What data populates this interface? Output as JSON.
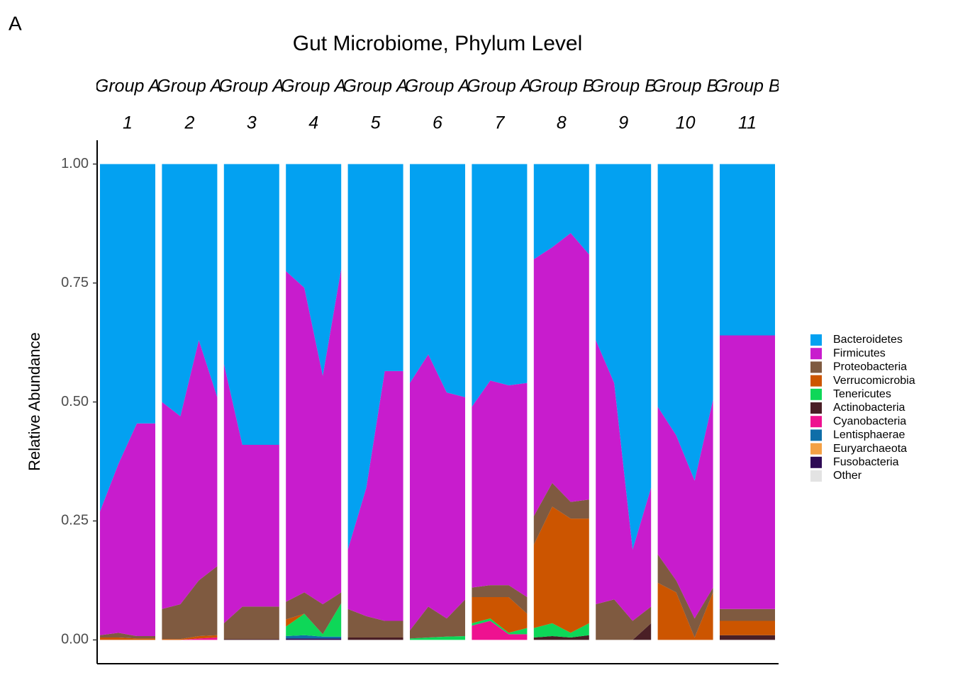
{
  "chart_data": {
    "type": "area",
    "panel_label": "A",
    "title": "Gut Microbiome, Phylum Level",
    "y_label": "Relative Abundance",
    "ylim": [
      -0.05,
      1.05
    ],
    "yticks": [
      {
        "value": 0,
        "label": "0.00"
      },
      {
        "value": 0.25,
        "label": "0.25"
      },
      {
        "value": 0.5,
        "label": "0.50"
      },
      {
        "value": 0.75,
        "label": "0.75"
      },
      {
        "value": 1,
        "label": "1.00"
      }
    ],
    "series": [
      {
        "name": "Bacteroidetes",
        "color": "#03a1f1"
      },
      {
        "name": "Firmicutes",
        "color": "#c81ccd"
      },
      {
        "name": "Proteobacteria",
        "color": "#7f5a40"
      },
      {
        "name": "Verrucomicrobia",
        "color": "#cc5500"
      },
      {
        "name": "Tenericutes",
        "color": "#0ed758"
      },
      {
        "name": "Actinobacteria",
        "color": "#4a1f26"
      },
      {
        "name": "Cyanobacteria",
        "color": "#ee1190"
      },
      {
        "name": "Lentisphaerae",
        "color": "#0f6ea8"
      },
      {
        "name": "Euryarchaeota",
        "color": "#f4a044"
      },
      {
        "name": "Fusobacteria",
        "color": "#2e0a55"
      },
      {
        "name": "Other",
        "color": "#e3e3e3"
      }
    ],
    "facets": [
      {
        "group": "Group A",
        "label": "1",
        "values": [
          [
            0.73,
            0.63,
            0.545,
            0.545
          ],
          [
            0.26,
            0.355,
            0.447,
            0.447
          ],
          [
            0.005,
            0.01,
            0.005,
            0.005
          ],
          [
            0.005,
            0.005,
            0.003,
            0.003
          ],
          [
            0,
            0,
            0,
            0
          ],
          [
            0,
            0,
            0,
            0
          ],
          [
            0,
            0,
            0,
            0
          ],
          [
            0,
            0,
            0,
            0
          ],
          [
            0,
            0,
            0,
            0
          ],
          [
            0,
            0,
            0,
            0
          ],
          [
            0,
            0,
            0,
            0
          ]
        ]
      },
      {
        "group": "Group A",
        "label": "2",
        "values": [
          [
            0.5,
            0.53,
            0.37,
            0.49
          ],
          [
            0.435,
            0.395,
            0.505,
            0.355
          ],
          [
            0.063,
            0.073,
            0.117,
            0.145
          ],
          [
            0.002,
            0.002,
            0.005,
            0.005
          ],
          [
            0,
            0,
            0,
            0
          ],
          [
            0,
            0,
            0,
            0
          ],
          [
            0,
            0,
            0.003,
            0.005
          ],
          [
            0,
            0,
            0,
            0
          ],
          [
            0,
            0,
            0,
            0
          ],
          [
            0,
            0,
            0,
            0
          ],
          [
            0,
            0,
            0,
            0
          ]
        ]
      },
      {
        "group": "Group A",
        "label": "3",
        "values": [
          [
            0.42,
            0.59,
            0.59,
            0.59
          ],
          [
            0.545,
            0.34,
            0.34,
            0.34
          ],
          [
            0.033,
            0.068,
            0.068,
            0.068
          ],
          [
            0,
            0,
            0,
            0
          ],
          [
            0,
            0,
            0,
            0
          ],
          [
            0.002,
            0.002,
            0.002,
            0.002
          ],
          [
            0,
            0,
            0,
            0
          ],
          [
            0,
            0,
            0,
            0
          ],
          [
            0,
            0,
            0,
            0
          ],
          [
            0,
            0,
            0,
            0
          ],
          [
            0,
            0,
            0,
            0
          ]
        ]
      },
      {
        "group": "Group A",
        "label": "4",
        "values": [
          [
            0.225,
            0.26,
            0.445,
            0.22
          ],
          [
            0.695,
            0.64,
            0.48,
            0.68
          ],
          [
            0.037,
            0.045,
            0.063,
            0.023
          ],
          [
            0.015,
            0,
            0,
            0
          ],
          [
            0.02,
            0.045,
            0.005,
            0.07
          ],
          [
            0,
            0,
            0,
            0
          ],
          [
            0,
            0,
            0,
            0
          ],
          [
            0.005,
            0.007,
            0.004,
            0.004
          ],
          [
            0,
            0,
            0,
            0
          ],
          [
            0.003,
            0.003,
            0.003,
            0.003
          ],
          [
            0,
            0,
            0,
            0
          ]
        ]
      },
      {
        "group": "Group A",
        "label": "5",
        "values": [
          [
            0.81,
            0.68,
            0.435,
            0.435
          ],
          [
            0.125,
            0.27,
            0.525,
            0.525
          ],
          [
            0.06,
            0.045,
            0.035,
            0.035
          ],
          [
            0,
            0,
            0,
            0
          ],
          [
            0,
            0,
            0,
            0
          ],
          [
            0.005,
            0.005,
            0.005,
            0.005
          ],
          [
            0,
            0,
            0,
            0
          ],
          [
            0,
            0,
            0,
            0
          ],
          [
            0,
            0,
            0,
            0
          ],
          [
            0,
            0,
            0,
            0
          ],
          [
            0,
            0,
            0,
            0
          ]
        ]
      },
      {
        "group": "Group A",
        "label": "6",
        "values": [
          [
            0.46,
            0.4,
            0.48,
            0.49
          ],
          [
            0.52,
            0.53,
            0.475,
            0.425
          ],
          [
            0.017,
            0.065,
            0.038,
            0.077
          ],
          [
            0,
            0,
            0,
            0
          ],
          [
            0.003,
            0.005,
            0.007,
            0.008
          ],
          [
            0,
            0,
            0,
            0
          ],
          [
            0,
            0,
            0,
            0
          ],
          [
            0,
            0,
            0,
            0
          ],
          [
            0,
            0,
            0,
            0
          ],
          [
            0,
            0,
            0,
            0
          ],
          [
            0,
            0,
            0,
            0
          ]
        ]
      },
      {
        "group": "Group A",
        "label": "7",
        "values": [
          [
            0.51,
            0.455,
            0.465,
            0.46
          ],
          [
            0.38,
            0.43,
            0.42,
            0.45
          ],
          [
            0.02,
            0.025,
            0.025,
            0.035
          ],
          [
            0.055,
            0.045,
            0.075,
            0.03
          ],
          [
            0.005,
            0.005,
            0.003,
            0.013
          ],
          [
            0,
            0,
            0,
            0
          ],
          [
            0.03,
            0.04,
            0.012,
            0.012
          ],
          [
            0,
            0,
            0,
            0
          ],
          [
            0,
            0,
            0,
            0
          ],
          [
            0,
            0,
            0,
            0
          ],
          [
            0,
            0,
            0,
            0
          ]
        ]
      },
      {
        "group": "Group B",
        "label": "8",
        "values": [
          [
            0.2,
            0.175,
            0.145,
            0.19
          ],
          [
            0.54,
            0.495,
            0.565,
            0.515
          ],
          [
            0.06,
            0.05,
            0.035,
            0.04
          ],
          [
            0.175,
            0.245,
            0.24,
            0.22
          ],
          [
            0.02,
            0.027,
            0.01,
            0.025
          ],
          [
            0.005,
            0.008,
            0.005,
            0.01
          ],
          [
            0,
            0,
            0,
            0
          ],
          [
            0,
            0,
            0,
            0
          ],
          [
            0,
            0,
            0,
            0
          ],
          [
            0,
            0,
            0,
            0
          ],
          [
            0,
            0,
            0,
            0
          ]
        ]
      },
      {
        "group": "Group B",
        "label": "9",
        "values": [
          [
            0.37,
            0.46,
            0.81,
            0.68
          ],
          [
            0.555,
            0.455,
            0.15,
            0.25
          ],
          [
            0.075,
            0.085,
            0.04,
            0.035
          ],
          [
            0,
            0,
            0,
            0
          ],
          [
            0,
            0,
            0,
            0
          ],
          [
            0,
            0,
            0,
            0.035
          ],
          [
            0,
            0,
            0,
            0
          ],
          [
            0,
            0,
            0,
            0
          ],
          [
            0,
            0,
            0,
            0
          ],
          [
            0,
            0,
            0,
            0
          ],
          [
            0,
            0,
            0,
            0
          ]
        ]
      },
      {
        "group": "Group B",
        "label": "10",
        "values": [
          [
            0.51,
            0.57,
            0.665,
            0.495
          ],
          [
            0.31,
            0.305,
            0.29,
            0.395
          ],
          [
            0.06,
            0.025,
            0.04,
            0.01
          ],
          [
            0.12,
            0.1,
            0.005,
            0.1
          ],
          [
            0,
            0,
            0,
            0
          ],
          [
            0,
            0,
            0,
            0
          ],
          [
            0,
            0,
            0,
            0
          ],
          [
            0,
            0,
            0,
            0
          ],
          [
            0,
            0,
            0,
            0
          ],
          [
            0,
            0,
            0,
            0
          ],
          [
            0,
            0,
            0,
            0
          ]
        ]
      },
      {
        "group": "Group B",
        "label": "11",
        "values": [
          [
            0.36,
            0.36
          ],
          [
            0.575,
            0.575
          ],
          [
            0.025,
            0.025
          ],
          [
            0.03,
            0.03
          ],
          [
            0,
            0
          ],
          [
            0.01,
            0.01
          ],
          [
            0,
            0
          ],
          [
            0,
            0
          ],
          [
            0,
            0
          ],
          [
            0,
            0
          ],
          [
            0,
            0
          ]
        ]
      }
    ]
  }
}
